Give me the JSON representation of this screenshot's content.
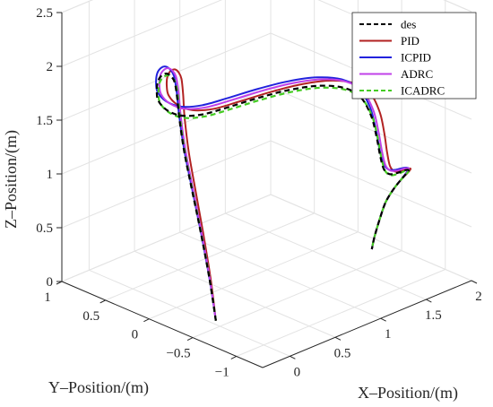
{
  "chart_data": {
    "type": "line",
    "subtype": "3d-trajectory",
    "title": "",
    "xlabel": "X–Position/(m)",
    "ylabel": "Y–Position/(m)",
    "zlabel": "Z–Position/(m)",
    "xlim": [
      -0.3,
      2.0
    ],
    "ylim": [
      -1.3,
      1.0
    ],
    "zlim": [
      0,
      2.5
    ],
    "x_ticks": [
      "0",
      "0.5",
      "1",
      "1.5",
      "2"
    ],
    "y_ticks": [
      "1",
      "0.5",
      "0",
      "-0.5",
      "-1"
    ],
    "z_ticks": [
      "0",
      "0.5",
      "1",
      "1.5",
      "2",
      "2.5"
    ],
    "grid": true,
    "legend_position": "top-right",
    "series": [
      {
        "name": "des",
        "color": "#000000",
        "dash": "dashed",
        "offset": [
          0,
          0,
          0
        ]
      },
      {
        "name": "PID",
        "color": "#b22222",
        "dash": "solid",
        "offset": [
          0.09,
          -0.03,
          0.03
        ]
      },
      {
        "name": "ICPID",
        "color": "#2222dd",
        "dash": "solid",
        "offset": [
          0.03,
          0.04,
          0.06
        ]
      },
      {
        "name": "ADRC",
        "color": "#c040e8",
        "dash": "solid",
        "offset": [
          0.05,
          0.02,
          0.04
        ]
      },
      {
        "name": "ICADRC",
        "color": "#44cc22",
        "dash": "dashed",
        "offset": [
          0.01,
          -0.01,
          -0.02
        ]
      }
    ],
    "trajectory": {
      "x": [
        0.05,
        0.05,
        0.05,
        0.06,
        0.09,
        0.15,
        0.22,
        0.26,
        0.25,
        0.19,
        0.1,
        -0.01,
        -0.11,
        -0.18,
        -0.2,
        -0.16,
        -0.05,
        0.12,
        0.34,
        0.6,
        0.85,
        1.05,
        1.18,
        1.26,
        1.31,
        1.36,
        1.42,
        1.5,
        1.58,
        1.64,
        1.66,
        1.62,
        1.55,
        1.47,
        1.42,
        1.41,
        1.43,
        1.46
      ],
      "y": [
        -0.4,
        -0.33,
        -0.23,
        -0.12,
        0.0,
        0.12,
        0.22,
        0.29,
        0.32,
        0.31,
        0.27,
        0.2,
        0.11,
        0.02,
        -0.1,
        -0.23,
        -0.36,
        -0.48,
        -0.58,
        -0.66,
        -0.74,
        -0.82,
        -0.88,
        -0.92,
        -0.93,
        -0.92,
        -0.9,
        -0.88,
        -0.88,
        -0.9,
        -0.93,
        -0.96,
        -0.97,
        -0.96,
        -0.92,
        -0.86,
        -0.78,
        -0.72
      ],
      "z": [
        0.0,
        0.35,
        0.75,
        1.1,
        1.4,
        1.65,
        1.8,
        1.9,
        1.95,
        2.0,
        2.03,
        2.04,
        2.02,
        1.98,
        1.94,
        1.92,
        1.94,
        1.99,
        2.03,
        2.04,
        2.02,
        1.96,
        1.85,
        1.66,
        1.45,
        1.25,
        1.1,
        1.02,
        1.0,
        1.01,
        1.02,
        1.02,
        0.99,
        0.92,
        0.8,
        0.62,
        0.42,
        0.28
      ]
    }
  }
}
